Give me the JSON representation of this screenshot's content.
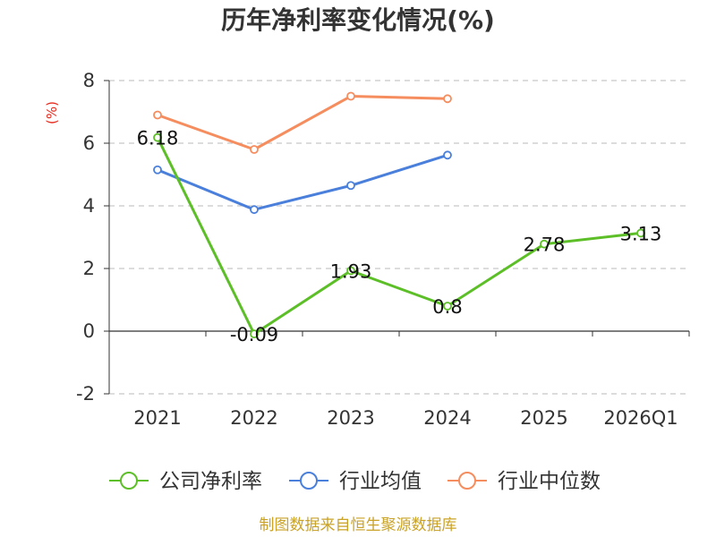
{
  "chart_data": {
    "type": "line",
    "title": "历年净利率变化情况(%)",
    "ylabel": "(%)",
    "categories": [
      "2021",
      "2022",
      "2023",
      "2024",
      "2025",
      "2026Q1"
    ],
    "ylim": [
      -2,
      8
    ],
    "yticks": [
      "-2",
      "0",
      "2",
      "4",
      "6",
      "8"
    ],
    "grid": true,
    "legend_position": "bottom",
    "series": [
      {
        "name": "公司净利率",
        "color": "#5dbf28",
        "values": [
          6.18,
          -0.09,
          1.93,
          0.8,
          2.78,
          3.13
        ],
        "labels": [
          "6.18",
          "-0.09",
          "1.93",
          "0.8",
          "2.78",
          "3.13"
        ]
      },
      {
        "name": "行业均值",
        "color": "#4a7fdb",
        "values": [
          5.15,
          3.88,
          4.65,
          5.62,
          null,
          null
        ]
      },
      {
        "name": "行业中位数",
        "color": "#f58d5e",
        "values": [
          6.9,
          5.8,
          7.5,
          7.42,
          null,
          null
        ]
      }
    ]
  },
  "source": "制图数据来自恒生聚源数据库"
}
